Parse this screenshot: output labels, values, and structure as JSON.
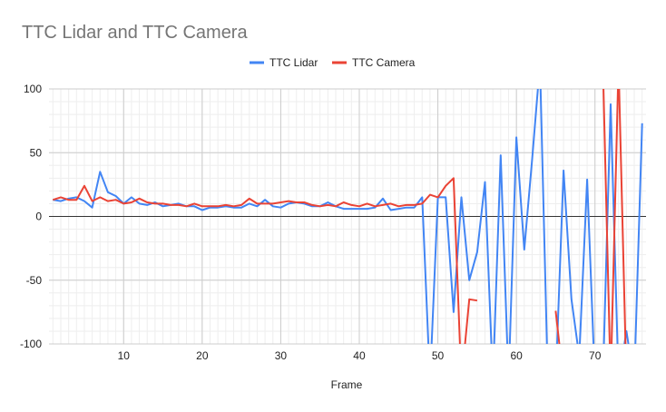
{
  "chart_data": {
    "type": "line",
    "title": "TTC Lidar and TTC Camera",
    "xlabel": "Frame",
    "ylabel": "",
    "xlim": [
      0.5,
      76.5
    ],
    "ylim": [
      -100,
      100
    ],
    "xticks": [
      10,
      20,
      30,
      40,
      50,
      60,
      70
    ],
    "yticks": [
      -100,
      -50,
      0,
      50,
      100
    ],
    "x_tick_labels": [
      "10",
      "20",
      "30",
      "40",
      "50",
      "60",
      "70"
    ],
    "y_tick_labels": [
      "-100",
      "-50",
      "0",
      "50",
      "100"
    ],
    "grid": true,
    "legend_position": "top",
    "x": [
      1,
      2,
      3,
      4,
      5,
      6,
      7,
      8,
      9,
      10,
      11,
      12,
      13,
      14,
      15,
      16,
      17,
      18,
      19,
      20,
      21,
      22,
      23,
      24,
      25,
      26,
      27,
      28,
      29,
      30,
      31,
      32,
      33,
      34,
      35,
      36,
      37,
      38,
      39,
      40,
      41,
      42,
      43,
      44,
      45,
      46,
      47,
      48,
      49,
      50,
      51,
      52,
      53,
      54,
      55,
      56,
      57,
      58,
      59,
      60,
      61,
      62,
      63,
      64,
      65,
      66,
      67,
      68,
      69,
      70,
      71,
      72,
      73,
      74,
      75,
      76
    ],
    "series": [
      {
        "name": "TTC Lidar",
        "color": "#4285f4",
        "values": [
          13,
          12,
          14,
          15,
          12,
          7,
          35,
          19,
          16,
          10,
          15,
          10,
          9,
          11,
          8,
          9,
          10,
          8,
          8,
          5,
          7,
          7,
          8,
          7,
          7,
          10,
          8,
          13,
          8,
          7,
          10,
          11,
          10,
          8,
          8,
          11,
          8,
          6,
          6,
          6,
          6,
          7,
          14,
          5,
          6,
          7,
          7,
          15,
          -130,
          15,
          15,
          -75,
          15,
          -50,
          -28,
          27,
          -130,
          48,
          -130,
          62,
          -26,
          45,
          120,
          -130,
          -130,
          36,
          -65,
          -110,
          29,
          -130,
          -130,
          88,
          -130,
          -90,
          -130,
          73
        ]
      },
      {
        "name": "TTC Camera",
        "color": "#ea4335",
        "values": [
          13,
          15,
          13,
          13,
          24,
          12,
          15,
          12,
          13,
          10,
          11,
          14,
          11,
          10,
          10,
          9,
          9,
          8,
          10,
          8,
          8,
          8,
          9,
          8,
          9,
          14,
          10,
          10,
          10,
          11,
          12,
          11,
          11,
          9,
          8,
          9,
          8,
          11,
          9,
          8,
          10,
          8,
          9,
          10,
          8,
          9,
          9,
          10,
          17,
          15,
          24,
          30,
          -130,
          -65,
          -66,
          null,
          null,
          null,
          null,
          null,
          null,
          null,
          null,
          null,
          -74,
          -130,
          null,
          null,
          null,
          null,
          120,
          -130,
          120,
          -130,
          null,
          null
        ]
      }
    ]
  }
}
